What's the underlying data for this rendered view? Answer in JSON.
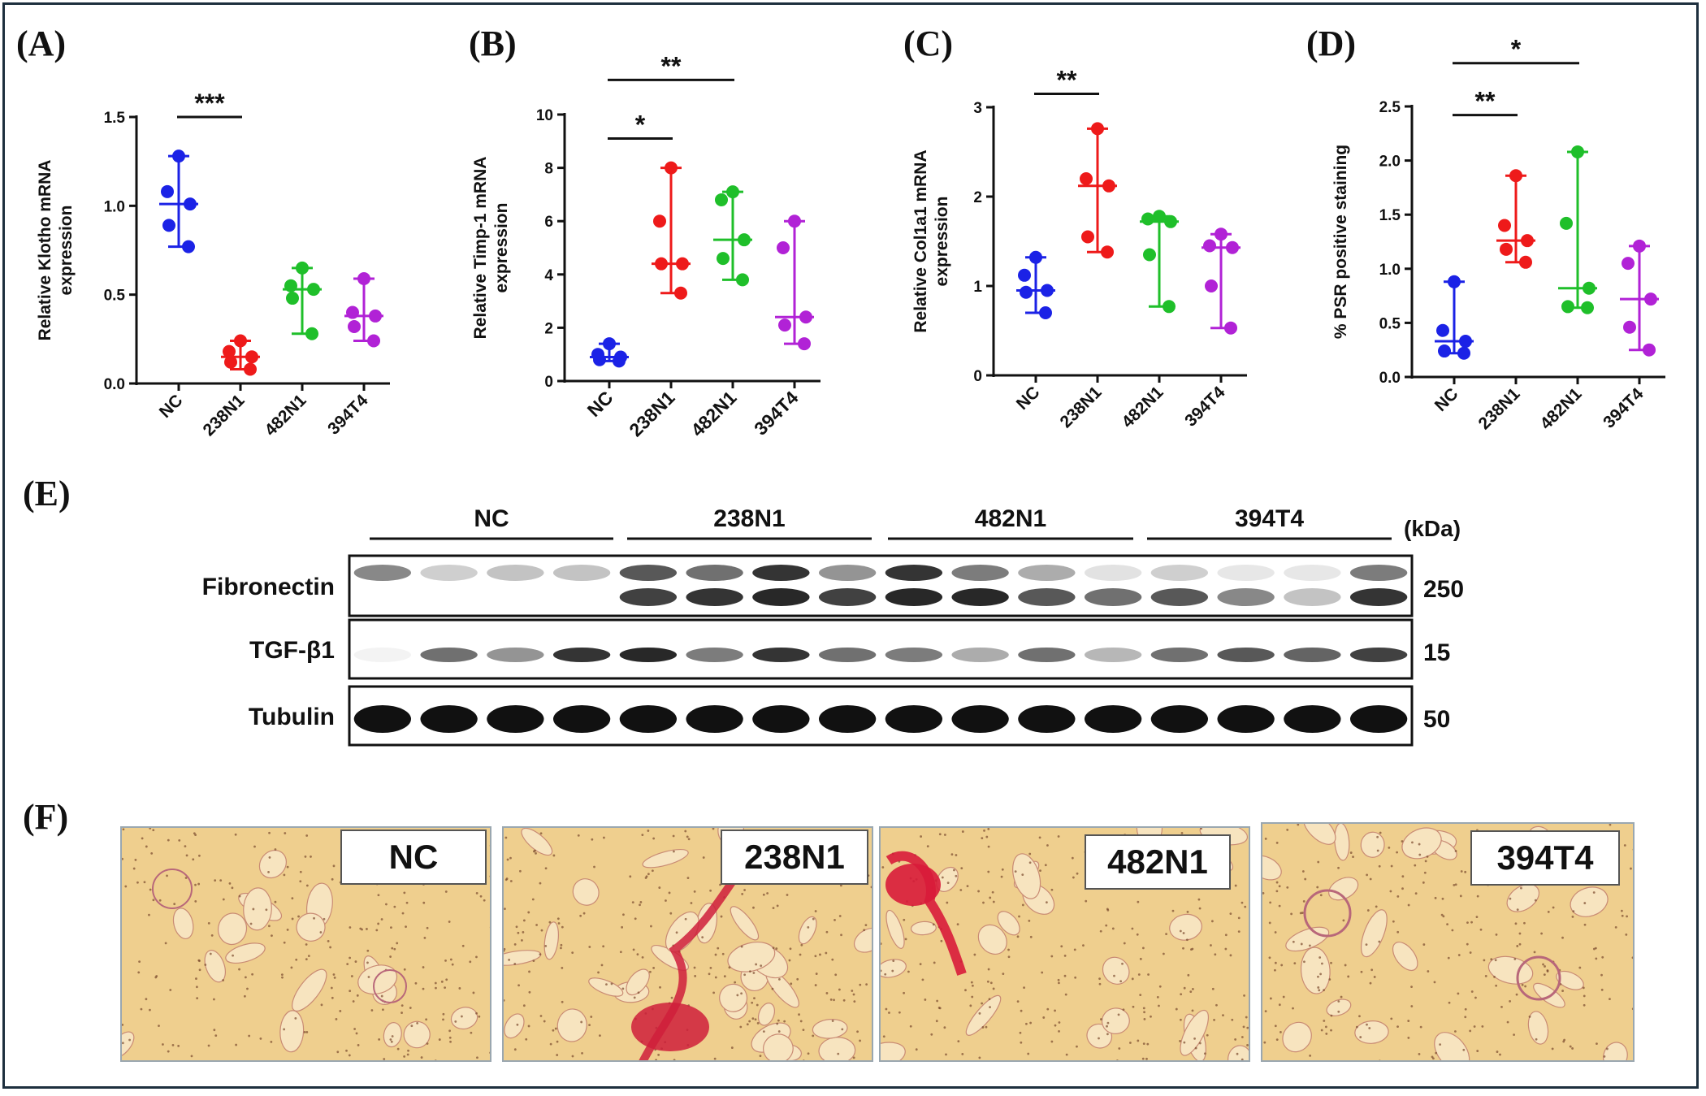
{
  "colors": {
    "NC": "#1b22e6",
    "238N1": "#ee1a1a",
    "482N1": "#1fbf2a",
    "394T4": "#b122d6",
    "frame": "#1d2f3e"
  },
  "groups": [
    "NC",
    "238N1",
    "482N1",
    "394T4"
  ],
  "panels": {
    "A": "(A)",
    "B": "(B)",
    "C": "(C)",
    "D": "(D)",
    "E": "(E)",
    "F": "(F)"
  },
  "chart_data": [
    {
      "id": "A",
      "type": "scatter",
      "ylabel": "Relative Klotho mRNA expression",
      "ylim": [
        0,
        1.5
      ],
      "yticks": [
        "0.0",
        "0.5",
        "1.0",
        "1.5"
      ],
      "categories": [
        "NC",
        "238N1",
        "482N1",
        "394T4"
      ],
      "series": [
        {
          "name": "NC",
          "points": [
            1.28,
            1.08,
            1.01,
            0.89,
            0.77
          ],
          "median": 1.01,
          "range": [
            0.77,
            1.28
          ]
        },
        {
          "name": "238N1",
          "points": [
            0.24,
            0.18,
            0.15,
            0.12,
            0.08
          ],
          "median": 0.15,
          "range": [
            0.08,
            0.24
          ]
        },
        {
          "name": "482N1",
          "points": [
            0.65,
            0.55,
            0.53,
            0.48,
            0.28
          ],
          "median": 0.53,
          "range": [
            0.28,
            0.65
          ]
        },
        {
          "name": "394T4",
          "points": [
            0.59,
            0.4,
            0.38,
            0.32,
            0.24
          ],
          "median": 0.38,
          "range": [
            0.24,
            0.59
          ]
        }
      ],
      "significance": [
        {
          "from": 0,
          "to": 1,
          "label": "***",
          "y": 1.5
        }
      ]
    },
    {
      "id": "B",
      "type": "scatter",
      "ylabel": "Relative Timp-1 mRNA expression",
      "ylim": [
        0,
        10
      ],
      "yticks": [
        "0",
        "2",
        "4",
        "6",
        "8",
        "10"
      ],
      "categories": [
        "NC",
        "238N1",
        "482N1",
        "394T4"
      ],
      "series": [
        {
          "name": "NC",
          "points": [
            1.4,
            1.0,
            0.9,
            0.8,
            0.75
          ],
          "median": 0.9,
          "range": [
            0.75,
            1.4
          ]
        },
        {
          "name": "238N1",
          "points": [
            8.0,
            6.0,
            4.4,
            4.4,
            3.3
          ],
          "median": 4.4,
          "range": [
            3.3,
            8.0
          ]
        },
        {
          "name": "482N1",
          "points": [
            7.1,
            6.8,
            5.3,
            4.6,
            3.8
          ],
          "median": 5.3,
          "range": [
            3.8,
            7.1
          ]
        },
        {
          "name": "394T4",
          "points": [
            6.0,
            5.0,
            2.4,
            2.1,
            1.4
          ],
          "median": 2.4,
          "range": [
            1.4,
            6.0
          ]
        }
      ],
      "significance": [
        {
          "from": 0,
          "to": 1,
          "label": "*",
          "y": 9.1
        },
        {
          "from": 0,
          "to": 2,
          "label": "**",
          "y": 11.3
        }
      ]
    },
    {
      "id": "C",
      "type": "scatter",
      "ylabel": "Relative Col1a1 mRNA expression",
      "ylim": [
        0,
        3
      ],
      "yticks": [
        "0",
        "1",
        "2",
        "3"
      ],
      "categories": [
        "NC",
        "238N1",
        "482N1",
        "394T4"
      ],
      "series": [
        {
          "name": "NC",
          "points": [
            1.32,
            1.12,
            0.95,
            0.93,
            0.7
          ],
          "median": 0.95,
          "range": [
            0.7,
            1.32
          ]
        },
        {
          "name": "238N1",
          "points": [
            2.76,
            2.2,
            2.12,
            1.55,
            1.38
          ],
          "median": 2.12,
          "range": [
            1.38,
            2.76
          ]
        },
        {
          "name": "482N1",
          "points": [
            1.78,
            1.75,
            1.72,
            1.35,
            0.77
          ],
          "median": 1.72,
          "range": [
            0.77,
            1.78
          ]
        },
        {
          "name": "394T4",
          "points": [
            1.58,
            1.45,
            1.43,
            1.0,
            0.53
          ],
          "median": 1.43,
          "range": [
            0.53,
            1.58
          ]
        }
      ],
      "significance": [
        {
          "from": 0,
          "to": 1,
          "label": "**",
          "y": 3.15
        }
      ]
    },
    {
      "id": "D",
      "type": "scatter",
      "ylabel": "% PSR positive staining",
      "ylim": [
        0,
        2.5
      ],
      "yticks": [
        "0.0",
        "0.5",
        "1.0",
        "1.5",
        "2.0",
        "2.5"
      ],
      "categories": [
        "NC",
        "238N1",
        "482N1",
        "394T4"
      ],
      "series": [
        {
          "name": "NC",
          "points": [
            0.88,
            0.43,
            0.33,
            0.24,
            0.22
          ],
          "median": 0.33,
          "range": [
            0.22,
            0.88
          ]
        },
        {
          "name": "238N1",
          "points": [
            1.86,
            1.4,
            1.26,
            1.18,
            1.06
          ],
          "median": 1.26,
          "range": [
            1.06,
            1.86
          ]
        },
        {
          "name": "482N1",
          "points": [
            2.08,
            1.42,
            0.82,
            0.65,
            0.64
          ],
          "median": 0.82,
          "range": [
            0.64,
            2.08
          ]
        },
        {
          "name": "394T4",
          "points": [
            1.21,
            1.05,
            0.72,
            0.46,
            0.25
          ],
          "median": 0.72,
          "range": [
            0.25,
            1.21
          ]
        }
      ],
      "significance": [
        {
          "from": 0,
          "to": 1,
          "label": "**",
          "y": 2.42
        },
        {
          "from": 0,
          "to": 2,
          "label": "*",
          "y": 2.9
        }
      ]
    }
  ],
  "blot": {
    "groups": [
      "NC",
      "238N1",
      "482N1",
      "394T4"
    ],
    "unit": "(kDa)",
    "rows": [
      {
        "name": "Fibronectin",
        "kda": "250",
        "top": [
          0.5,
          0.2,
          0.25,
          0.25,
          0.7,
          0.6,
          0.85,
          0.45,
          0.85,
          0.55,
          0.35,
          0.12,
          0.2,
          0.1,
          0.1,
          0.55
        ],
        "bottom": [
          0,
          0,
          0,
          0,
          0.8,
          0.85,
          0.9,
          0.8,
          0.9,
          0.9,
          0.7,
          0.6,
          0.7,
          0.5,
          0.25,
          0.85
        ]
      },
      {
        "name": "TGF-β1",
        "kda": "15",
        "top": [
          0.05,
          0.6,
          0.45,
          0.85,
          0.9,
          0.55,
          0.85,
          0.6,
          0.55,
          0.35,
          0.6,
          0.3,
          0.6,
          0.7,
          0.65,
          0.8
        ]
      },
      {
        "name": "Tubulin",
        "kda": "50",
        "top": [
          1,
          1,
          1,
          1,
          1,
          1,
          1,
          1,
          1,
          1,
          1,
          1,
          1,
          1,
          1,
          1
        ]
      }
    ]
  },
  "histology": [
    "NC",
    "238N1",
    "482N1",
    "394T4"
  ]
}
